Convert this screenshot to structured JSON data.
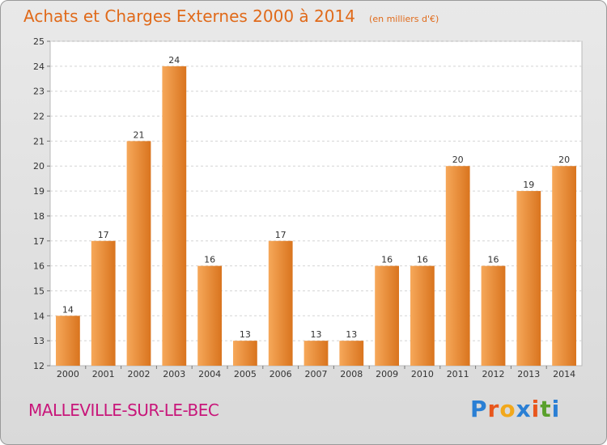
{
  "title": "Achats et Charges Externes 2000 à 2014",
  "unit_note": "(en milliers d'€)",
  "commune": "MALLEVILLE-SUR-LE-BEC",
  "logo": {
    "letters": [
      "P",
      "r",
      "o",
      "x",
      "i",
      "t",
      "i"
    ],
    "colors": [
      "#2a7fd4",
      "#e8561c",
      "#f2a81b",
      "#2a7fd4",
      "#e8561c",
      "#5aa02c",
      "#2a7fd4"
    ]
  },
  "colors": {
    "title": "#e06a1a",
    "commune": "#c8167a",
    "bar_light": "#f6a85a",
    "bar_dark": "#d9741e",
    "plot_background": "#ffffff"
  },
  "chart_data": {
    "type": "bar",
    "categories": [
      "2000",
      "2001",
      "2002",
      "2003",
      "2004",
      "2005",
      "2006",
      "2007",
      "2008",
      "2009",
      "2010",
      "2011",
      "2012",
      "2013",
      "2014"
    ],
    "values": [
      14,
      17,
      21,
      24,
      16,
      13,
      17,
      13,
      13,
      16,
      16,
      20,
      16,
      19,
      20
    ],
    "data_labels": [
      "14",
      "17",
      "21",
      "24",
      "16",
      "13",
      "17",
      "13",
      "13",
      "16",
      "16",
      "20",
      "16",
      "19",
      "20"
    ],
    "y_ticks": [
      "12",
      "13",
      "14",
      "15",
      "16",
      "17",
      "18",
      "19",
      "20",
      "21",
      "22",
      "23",
      "24",
      "25"
    ],
    "ylim": [
      12,
      25
    ],
    "grid": true
  }
}
